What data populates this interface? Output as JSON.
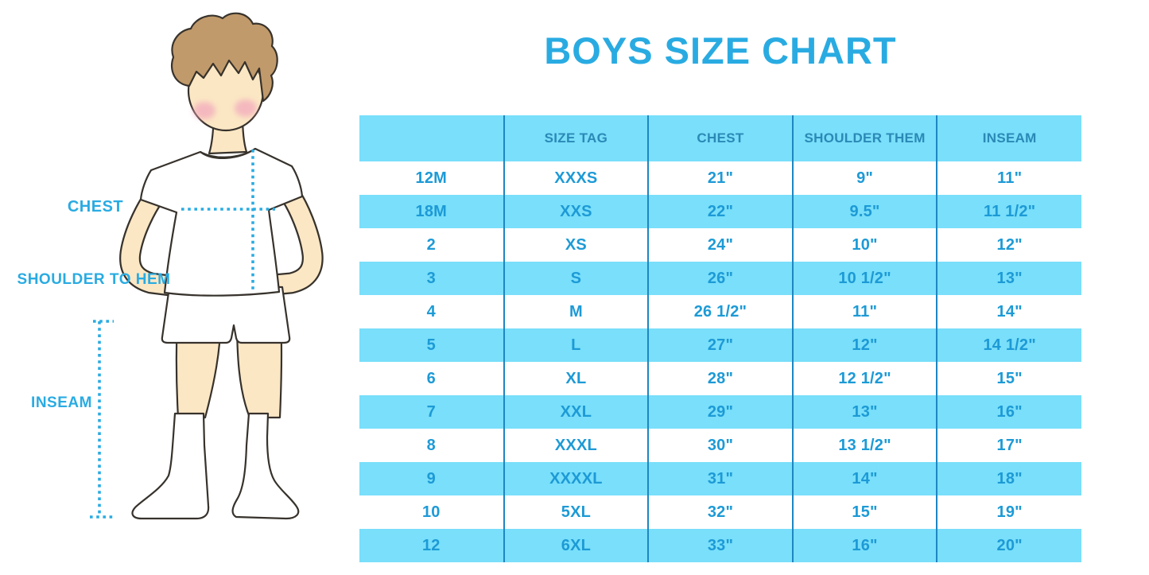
{
  "colors": {
    "accent_blue": "#29ABE2",
    "table_fill": "#79DFFA",
    "divider": "#1E86C2",
    "header_text": "#2B89B6",
    "cell_text": "#1D9AD6",
    "line_dark": "#37322C",
    "skin": "#FBE7C4",
    "hair": "#C19A6B",
    "blush": "#F2A6BC",
    "garment_white": "#FFFFFF"
  },
  "chart_data": {
    "type": "table",
    "title": "BOYS SIZE CHART",
    "columns": [
      "",
      "SIZE TAG",
      "CHEST",
      "SHOULDER THEM",
      "INSEAM"
    ],
    "rows": [
      [
        "12M",
        "XXXS",
        "21\"",
        "9\"",
        "11\""
      ],
      [
        "18M",
        "XXS",
        "22\"",
        "9.5\"",
        "11 1/2\""
      ],
      [
        "2",
        "XS",
        "24\"",
        "10\"",
        "12\""
      ],
      [
        "3",
        "S",
        "26\"",
        "10 1/2\"",
        "13\""
      ],
      [
        "4",
        "M",
        "26 1/2\"",
        "11\"",
        "14\""
      ],
      [
        "5",
        "L",
        "27\"",
        "12\"",
        "14 1/2\""
      ],
      [
        "6",
        "XL",
        "28\"",
        "12 1/2\"",
        "15\""
      ],
      [
        "7",
        "XXL",
        "29\"",
        "13\"",
        "16\""
      ],
      [
        "8",
        "XXXL",
        "30\"",
        "13 1/2\"",
        "17\""
      ],
      [
        "9",
        "XXXXL",
        "31\"",
        "14\"",
        "18\""
      ],
      [
        "10",
        "5XL",
        "32\"",
        "15\"",
        "19\""
      ],
      [
        "12",
        "6XL",
        "33\"",
        "16\"",
        "20\""
      ]
    ]
  },
  "figure": {
    "labels": [
      {
        "id": "chest",
        "text": "CHEST"
      },
      {
        "id": "shoulder_to_hem",
        "text": "SHOULDER TO HEM"
      },
      {
        "id": "inseam",
        "text": "INSEAM"
      }
    ]
  }
}
